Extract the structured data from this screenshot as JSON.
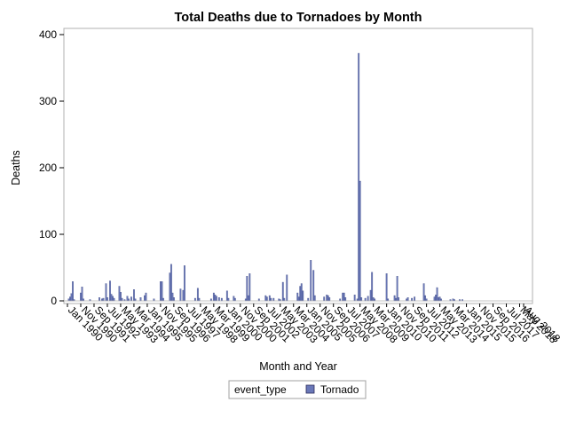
{
  "chart_data": {
    "type": "bar",
    "title": "Total Deaths due to Tornadoes by Month",
    "xlabel": "Month and Year",
    "ylabel": "Deaths",
    "ylim": [
      0,
      400
    ],
    "yticks": [
      0,
      100,
      200,
      300,
      400
    ],
    "x_start": "Jan 1990",
    "x_end": "Dec 2018",
    "x_tick_labels": [
      "Jan 1990",
      "Nov 1990",
      "Sep 1991",
      "Jul 1992",
      "May 1993",
      "Mar 1994",
      "Jan 1995",
      "Nov 1995",
      "Sep 1996",
      "Jul 1997",
      "May 1998",
      "Mar 1999",
      "Jan 2000",
      "Nov 2000",
      "Sep 2001",
      "Jul 2002",
      "May 2003",
      "Mar 2004",
      "Jan 2005",
      "Nov 2005",
      "Sep 2006",
      "Jul 2007",
      "May 2008",
      "Mar 2009",
      "Jan 2010",
      "Nov 2010",
      "Sep 2011",
      "Jul 2012",
      "May 2013",
      "Mar 2014",
      "Jan 2015",
      "Nov 2015",
      "Sep 2016",
      "Jul 2017",
      "May 2018",
      "Aug 2018"
    ],
    "grid": false,
    "legend": {
      "title": "event_type",
      "placement": "bottom-center"
    },
    "series": [
      {
        "name": "Tornado",
        "color": "#6a78b8",
        "points": [
          [
            "Feb 1990",
            3
          ],
          [
            "Mar 1990",
            6
          ],
          [
            "Apr 1990",
            11
          ],
          [
            "May 1990",
            29
          ],
          [
            "Jun 1990",
            2
          ],
          [
            "Nov 1990",
            12
          ],
          [
            "Dec 1990",
            21
          ],
          [
            "Jan 1991",
            3
          ],
          [
            "Jun 1991",
            2
          ],
          [
            "Jan 1992",
            5
          ],
          [
            "Mar 1992",
            3
          ],
          [
            "Apr 1992",
            4
          ],
          [
            "Jun 1992",
            26
          ],
          [
            "Jul 1992",
            5
          ],
          [
            "Sep 1992",
            30
          ],
          [
            "Oct 1992",
            10
          ],
          [
            "Nov 1992",
            7
          ],
          [
            "Dec 1992",
            4
          ],
          [
            "Apr 1993",
            22
          ],
          [
            "May 1993",
            13
          ],
          [
            "Jun 1993",
            4
          ],
          [
            "Aug 1993",
            2
          ],
          [
            "Oct 1993",
            7
          ],
          [
            "Nov 1993",
            3
          ],
          [
            "Jan 1994",
            6
          ],
          [
            "Mar 1994",
            17
          ],
          [
            "Apr 1994",
            3
          ],
          [
            "Aug 1994",
            5
          ],
          [
            "Nov 1994",
            8
          ],
          [
            "Dec 1994",
            12
          ],
          [
            "Jun 1995",
            3
          ],
          [
            "Nov 1995",
            29
          ],
          [
            "Dec 1995",
            29
          ],
          [
            "Jan 1996",
            4
          ],
          [
            "Jun 1996",
            42
          ],
          [
            "Jul 1996",
            55
          ],
          [
            "Aug 1996",
            12
          ],
          [
            "Sep 1996",
            5
          ],
          [
            "Feb 1997",
            18
          ],
          [
            "Apr 1997",
            16
          ],
          [
            "May 1997",
            53
          ],
          [
            "Jan 1998",
            4
          ],
          [
            "Mar 1998",
            19
          ],
          [
            "Apr 1998",
            4
          ],
          [
            "Jan 1999",
            3
          ],
          [
            "Mar 1999",
            12
          ],
          [
            "Apr 1999",
            9
          ],
          [
            "May 1999",
            7
          ],
          [
            "Jul 1999",
            5
          ],
          [
            "Sep 1999",
            4
          ],
          [
            "Jan 2000",
            15
          ],
          [
            "Feb 2000",
            4
          ],
          [
            "Jun 2000",
            7
          ],
          [
            "Jul 2000",
            4
          ],
          [
            "Mar 2001",
            3
          ],
          [
            "Apr 2001",
            37
          ],
          [
            "May 2001",
            8
          ],
          [
            "Jun 2001",
            41
          ],
          [
            "Jan 2002",
            3
          ],
          [
            "Jun 2002",
            8
          ],
          [
            "Jul 2002",
            6
          ],
          [
            "Sep 2002",
            8
          ],
          [
            "Oct 2002",
            4
          ],
          [
            "Dec 2002",
            4
          ],
          [
            "Apr 2003",
            3
          ],
          [
            "May 2003",
            2
          ],
          [
            "Jul 2003",
            28
          ],
          [
            "Aug 2003",
            4
          ],
          [
            "Oct 2003",
            39
          ],
          [
            "Jun 2004",
            12
          ],
          [
            "Jul 2004",
            6
          ],
          [
            "Aug 2004",
            22
          ],
          [
            "Sep 2004",
            26
          ],
          [
            "Oct 2004",
            15
          ],
          [
            "Feb 2005",
            4
          ],
          [
            "Apr 2005",
            61
          ],
          [
            "Jun 2005",
            46
          ],
          [
            "Jul 2005",
            8
          ],
          [
            "Feb 2006",
            6
          ],
          [
            "Apr 2006",
            9
          ],
          [
            "May 2006",
            8
          ],
          [
            "Jun 2006",
            5
          ],
          [
            "Feb 2007",
            3
          ],
          [
            "Apr 2007",
            12
          ],
          [
            "May 2007",
            12
          ],
          [
            "Jun 2007",
            5
          ],
          [
            "Jan 2008",
            9
          ],
          [
            "Mar 2008",
            3
          ],
          [
            "Apr 2008",
            372
          ],
          [
            "May 2008",
            180
          ],
          [
            "Jun 2008",
            5
          ],
          [
            "Sep 2008",
            4
          ],
          [
            "Nov 2008",
            7
          ],
          [
            "Jan 2009",
            16
          ],
          [
            "Feb 2009",
            43
          ],
          [
            "Mar 2009",
            5
          ],
          [
            "Apr 2009",
            3
          ],
          [
            "Jan 2010",
            41
          ],
          [
            "Feb 2010",
            3
          ],
          [
            "Jul 2010",
            8
          ],
          [
            "Aug 2010",
            4
          ],
          [
            "Sep 2010",
            37
          ],
          [
            "Oct 2010",
            5
          ],
          [
            "Apr 2011",
            3
          ],
          [
            "May 2011",
            5
          ],
          [
            "Aug 2011",
            4
          ],
          [
            "Oct 2011",
            6
          ],
          [
            "May 2012",
            26
          ],
          [
            "Jun 2012",
            8
          ],
          [
            "Jul 2012",
            3
          ],
          [
            "Jan 2013",
            6
          ],
          [
            "Feb 2013",
            9
          ],
          [
            "Mar 2013",
            20
          ],
          [
            "Apr 2013",
            5
          ],
          [
            "May 2013",
            6
          ],
          [
            "Jun 2013",
            3
          ],
          [
            "Jan 2014",
            2
          ],
          [
            "Mar 2014",
            3
          ],
          [
            "Apr 2014",
            2
          ],
          [
            "Aug 2014",
            2
          ],
          [
            "Oct 2014",
            2
          ]
        ]
      }
    ]
  }
}
